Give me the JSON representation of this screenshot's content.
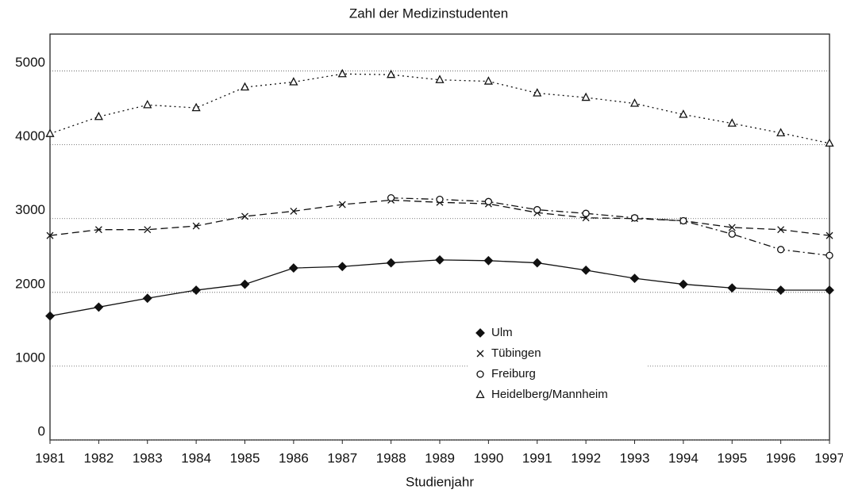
{
  "chart_data": {
    "type": "line",
    "title": "Zahl der Medizinstudenten",
    "x_label": "Studienjahr",
    "x": [
      1981,
      1982,
      1983,
      1984,
      1985,
      1986,
      1987,
      1988,
      1989,
      1990,
      1991,
      1992,
      1993,
      1994,
      1995,
      1996,
      1997
    ],
    "xlim": [
      1981,
      1997
    ],
    "xticks": [
      1981,
      1982,
      1983,
      1984,
      1985,
      1986,
      1987,
      1988,
      1989,
      1990,
      1991,
      1992,
      1993,
      1994,
      1995,
      1996,
      1997
    ],
    "ylim": [
      0,
      5500
    ],
    "yticks": [
      0,
      1000,
      2000,
      3000,
      4000,
      5000
    ],
    "grid": true,
    "legend": "center",
    "series": [
      {
        "name": "Ulm",
        "color": "#111111",
        "marker": "diamond",
        "dash": "solid",
        "values": [
          1680,
          1800,
          1920,
          2030,
          2110,
          2330,
          2350,
          2400,
          2440,
          2430,
          2400,
          2300,
          2190,
          2110,
          2060,
          2030,
          2030
        ]
      },
      {
        "name": "Tübingen",
        "color": "#111111",
        "marker": "x",
        "dash": "dashed",
        "values": [
          2770,
          2850,
          2850,
          2900,
          3030,
          3100,
          3190,
          3250,
          3220,
          3200,
          3080,
          3010,
          3000,
          2970,
          2880,
          2850,
          2770
        ]
      },
      {
        "name": "Freiburg",
        "color": "#111111",
        "marker": "circle",
        "dash": "dashdot",
        "values": [
          null,
          null,
          null,
          null,
          null,
          null,
          null,
          3280,
          3260,
          3230,
          3120,
          3070,
          3010,
          2970,
          2790,
          2580,
          2500
        ]
      },
      {
        "name": "Heidelberg/Mannheim",
        "color": "#111111",
        "marker": "triangle",
        "dash": "dotted",
        "values": [
          4150,
          4380,
          4540,
          4500,
          4780,
          4850,
          4960,
          4950,
          4880,
          4860,
          4700,
          4640,
          4560,
          4410,
          4290,
          4160,
          4020
        ]
      }
    ]
  }
}
